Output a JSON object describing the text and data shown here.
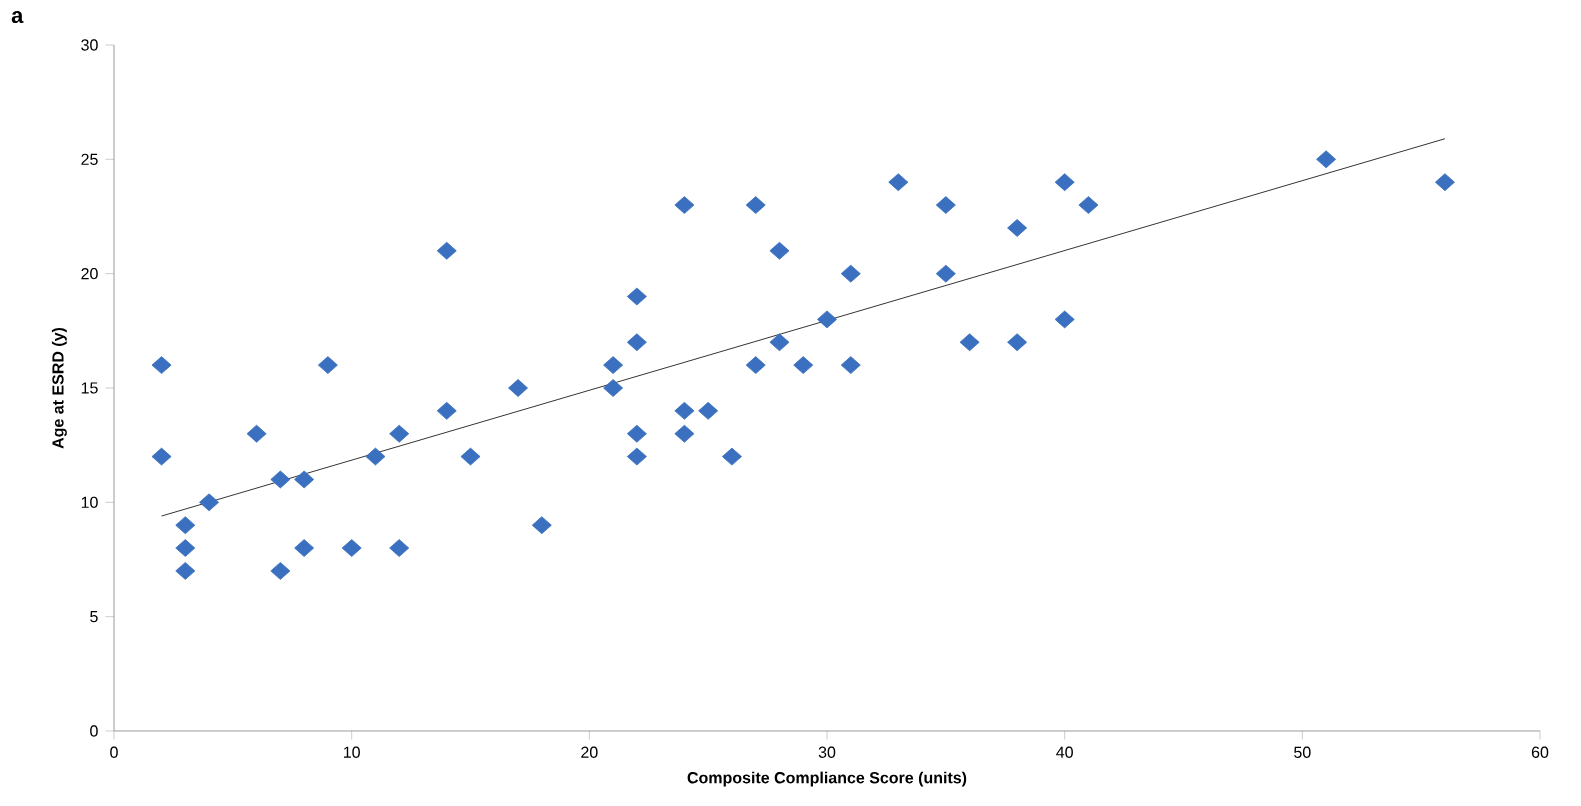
{
  "chart_data": {
    "type": "scatter",
    "xlabel": "Composite Compliance Score (units)",
    "ylabel": "Age at ESRD (y)",
    "annotations": [
      "a"
    ],
    "xlim": [
      0,
      60
    ],
    "ylim": [
      0,
      30
    ],
    "xticks": [
      0,
      10,
      20,
      30,
      40,
      50,
      60
    ],
    "yticks": [
      0,
      5,
      10,
      15,
      20,
      25,
      30
    ],
    "grid": false,
    "series": [
      {
        "color": "#3a70bf",
        "marker": "diamond",
        "x": [
          2,
          2,
          3,
          3,
          3,
          4,
          6,
          7,
          7,
          8,
          8,
          9,
          10,
          11,
          12,
          12,
          14,
          14,
          15,
          17,
          18,
          21,
          21,
          22,
          22,
          22,
          22,
          24,
          24,
          24,
          25,
          26,
          27,
          27,
          28,
          28,
          29,
          30,
          31,
          31,
          33,
          35,
          35,
          36,
          38,
          38,
          40,
          40,
          41,
          51,
          56
        ],
        "values": [
          16,
          12,
          9,
          8,
          7,
          10,
          13,
          11,
          7,
          11,
          8,
          16,
          8,
          12,
          13,
          8,
          14,
          21,
          12,
          15,
          9,
          16,
          15,
          19,
          17,
          13,
          12,
          23,
          14,
          13,
          14,
          12,
          23,
          16,
          21,
          17,
          16,
          18,
          20,
          16,
          24,
          23,
          20,
          17,
          22,
          17,
          24,
          18,
          23,
          25,
          24
        ]
      },
      {
        "type": "line",
        "marker": "none",
        "color": "#000000",
        "x": [
          2,
          56
        ],
        "values": [
          9.4,
          25.9
        ]
      }
    ]
  }
}
